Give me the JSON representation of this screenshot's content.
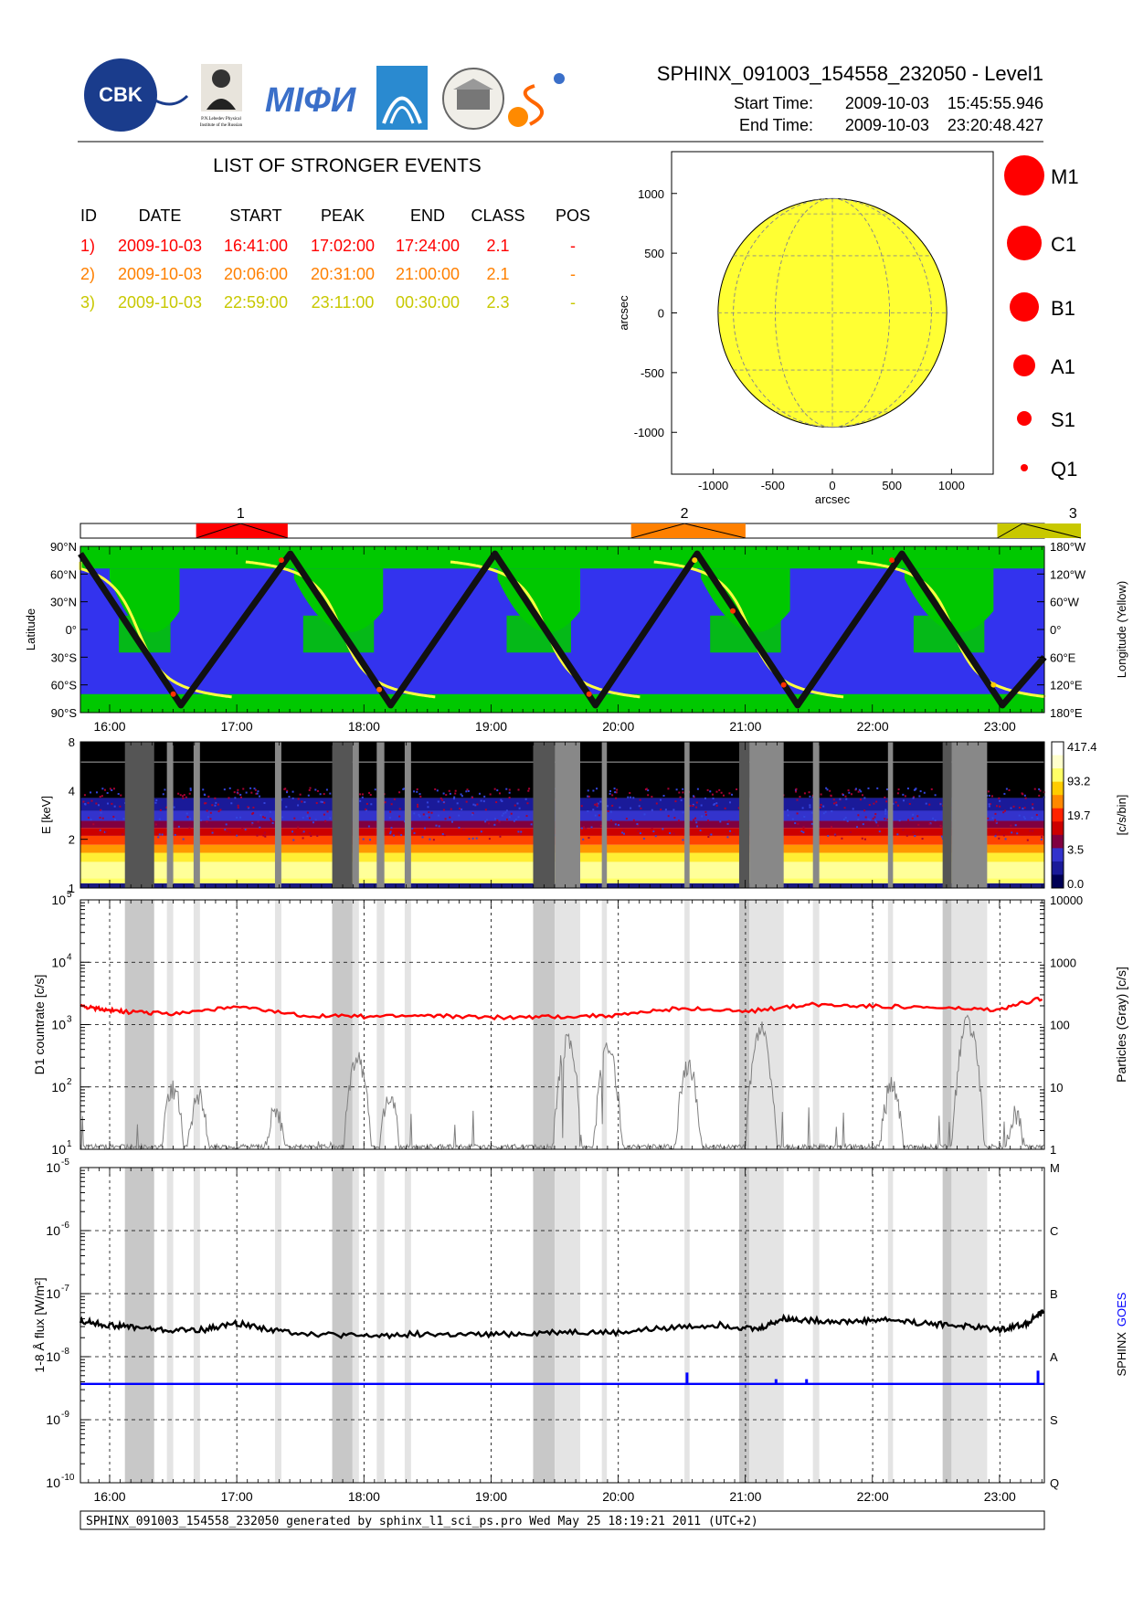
{
  "header": {
    "title": "SPHINX_091003_154558_232050 - Level1",
    "start_label": "Start Time:",
    "start_value": "2009-10-03    15:45:55.946",
    "end_label": "End Time:",
    "end_value": "2009-10-03    23:20:48.427",
    "logos": [
      "CBK PAN",
      "P.N.Lebedev Physical Institute of the Russian Academy of Science",
      "MIFI",
      "Lockheed",
      "Instytut",
      "Solar"
    ]
  },
  "events_table": {
    "heading": "LIST OF STRONGER EVENTS",
    "columns": [
      "ID",
      "DATE",
      "START",
      "PEAK",
      "END",
      "CLASS",
      "POS"
    ],
    "rows": [
      {
        "id": "1)",
        "date": "2009-10-03",
        "start": "16:41:00",
        "peak": "17:02:00",
        "end": "17:24:00",
        "class": "2.1",
        "pos": "-",
        "color": "#ff0000"
      },
      {
        "id": "2)",
        "date": "2009-10-03",
        "start": "20:06:00",
        "peak": "20:31:00",
        "end": "21:00:00",
        "class": "2.1",
        "pos": "-",
        "color": "#ff8000"
      },
      {
        "id": "3)",
        "date": "2009-10-03",
        "start": "22:59:00",
        "peak": "23:11:00",
        "end": "00:30:00",
        "class": "2.3",
        "pos": "-",
        "color": "#c8c800"
      }
    ]
  },
  "sun_legend": [
    "M1",
    "C1",
    "B1",
    "A1",
    "S1",
    "Q1"
  ],
  "event_markers": [
    "1",
    "2",
    "3"
  ],
  "footer": "SPHINX_091003_154558_232050 generated by sphinx_l1_sci_ps.pro Wed May 25 18:19:21 2011 (UTC+2)",
  "colors": {
    "sun": "#ffff33",
    "orbit_blue": "#3333ee",
    "orbit_green": "#00c800",
    "sphinx_flux": "#000000",
    "goes_flux": "#0000ff",
    "d1_countrate": "#ff0000",
    "particles": "#808080"
  },
  "chart_data": [
    {
      "type": "scatter",
      "name": "sun_disc",
      "xlabel": "arcsec",
      "ylabel": "arcsec",
      "xlim": [
        -1350,
        1350
      ],
      "ylim": [
        -1350,
        1350
      ],
      "xticks": [
        "-1000",
        "-500",
        "0",
        "500",
        "1000"
      ],
      "xtick_values": [
        -1000,
        -500,
        0,
        500,
        1000
      ],
      "yticks": [
        "1000",
        "500",
        "0",
        "-500",
        "-1000"
      ],
      "ytick_values": [
        1000,
        500,
        0,
        -500,
        -1000
      ],
      "sun_radius": 960
    },
    {
      "type": "line",
      "name": "orbit_position",
      "ylabel": "Latitude",
      "y2label": "Longitude (Yellow)",
      "yticks": [
        "90°N",
        "60°N",
        "30°N",
        "0°",
        "30°S",
        "60°S",
        "90°S"
      ],
      "ytick_values": [
        90,
        60,
        30,
        0,
        -30,
        -60,
        -90
      ],
      "y2ticks": [
        "180°W",
        "120°W",
        "60°W",
        "0°",
        "60°E",
        "120°E",
        "180°E"
      ],
      "x_time_hours": [
        15.77,
        23.35
      ],
      "latitude_track": {
        "x": [
          15.77,
          16.56,
          17.42,
          18.21,
          19.03,
          19.82,
          20.62,
          21.41,
          22.23,
          23.02,
          23.35
        ],
        "y": [
          82,
          -82,
          82,
          -82,
          82,
          -82,
          82,
          -82,
          82,
          -82,
          -30
        ]
      },
      "longitude_track_centers": [
        16.22,
        17.82,
        19.43,
        21.03,
        22.63
      ]
    },
    {
      "type": "heatmap",
      "name": "spectrum",
      "ylabel": "E [keV]",
      "yticks": [
        "8",
        "4",
        "2",
        "1"
      ],
      "ytick_values": [
        8,
        4,
        2,
        1
      ],
      "colorbar_label": "[c/s/bin]",
      "colorbar_ticks": [
        "417.4",
        "93.2",
        "19.7",
        "3.5",
        "0.0"
      ]
    },
    {
      "type": "line",
      "name": "d1_countrate",
      "ylabel": "D1 countrate [c/s]",
      "y2label": "Particles (Gray) [c/s]",
      "ylim": [
        10,
        100000
      ],
      "yscale": "log",
      "yticks": [
        "10^1",
        "10^2",
        "10^3",
        "10^4",
        "10^5"
      ],
      "y2ticks": [
        "1",
        "10",
        "100",
        "1000",
        "10000"
      ],
      "series": [
        {
          "name": "D1",
          "x": [
            15.77,
            15.95,
            16.15,
            16.5,
            17.0,
            17.5,
            18.0,
            18.5,
            19.0,
            19.5,
            20.0,
            20.5,
            21.0,
            21.5,
            22.0,
            22.5,
            23.0,
            23.35
          ],
          "y": [
            2000,
            1750,
            1600,
            1500,
            1900,
            1400,
            1350,
            1400,
            1300,
            1350,
            1400,
            1850,
            1600,
            2100,
            2000,
            1850,
            1700,
            2700
          ]
        },
        {
          "name": "Particles",
          "peaks": [
            {
              "x": 16.5,
              "y": 25
            },
            {
              "x": 16.7,
              "y": 20
            },
            {
              "x": 17.3,
              "y": 12
            },
            {
              "x": 17.95,
              "y": 80
            },
            {
              "x": 18.2,
              "y": 18
            },
            {
              "x": 19.6,
              "y": 140
            },
            {
              "x": 19.92,
              "y": 110
            },
            {
              "x": 20.55,
              "y": 60
            },
            {
              "x": 21.12,
              "y": 230
            },
            {
              "x": 22.15,
              "y": 30
            },
            {
              "x": 22.75,
              "y": 300
            },
            {
              "x": 23.12,
              "y": 10
            }
          ]
        }
      ]
    },
    {
      "type": "line",
      "name": "xray_flux",
      "ylabel": "1-8 Å flux [W/m²]",
      "y2label": [
        "SPHINX",
        "GOES"
      ],
      "ylim": [
        1e-10,
        1e-05
      ],
      "yscale": "log",
      "yticks": [
        "10^-10",
        "10^-9",
        "10^-8",
        "10^-7",
        "10^-6",
        "10^-5"
      ],
      "y2ticks": [
        "Q",
        "S",
        "A",
        "B",
        "C",
        "M"
      ],
      "xticks": [
        "16:00",
        "17:00",
        "18:00",
        "19:00",
        "20:00",
        "21:00",
        "22:00",
        "23:00"
      ],
      "xtick_values": [
        16,
        17,
        18,
        19,
        20,
        21,
        22,
        23
      ],
      "series": [
        {
          "name": "SPHINX",
          "x": [
            15.77,
            15.95,
            16.15,
            16.45,
            16.75,
            17.0,
            17.3,
            17.6,
            18.0,
            18.4,
            18.8,
            19.2,
            19.6,
            20.0,
            20.4,
            20.8,
            21.1,
            21.3,
            21.5,
            21.8,
            22.1,
            22.4,
            22.7,
            23.0,
            23.2,
            23.35
          ],
          "y": [
            3.8e-08,
            3.2e-08,
            3e-08,
            2.6e-08,
            2.7e-08,
            3.4e-08,
            2.6e-08,
            2.3e-08,
            2.1e-08,
            2.3e-08,
            2.2e-08,
            2.3e-08,
            2.5e-08,
            2.4e-08,
            2.9e-08,
            3.2e-08,
            2.7e-08,
            4e-08,
            3.8e-08,
            3.6e-08,
            3.9e-08,
            3.4e-08,
            3.1e-08,
            2.7e-08,
            3.3e-08,
            5.2e-08
          ]
        },
        {
          "name": "GOES",
          "baseline": 3.7e-09,
          "spikes": [
            {
              "x": 20.54,
              "y": 5.6e-09
            },
            {
              "x": 21.24,
              "y": 4.4e-09
            },
            {
              "x": 21.48,
              "y": 4.4e-09
            },
            {
              "x": 23.3,
              "y": 6e-09
            }
          ]
        }
      ]
    }
  ],
  "time_axis": {
    "start_hours": 15.77,
    "end_hours": 23.35,
    "events_bar": [
      {
        "label": "1",
        "start": 16.68,
        "peak": 17.03,
        "end": 17.4,
        "color": "#ff0000"
      },
      {
        "label": "2",
        "start": 20.1,
        "peak": 20.52,
        "end": 21.0,
        "color": "#ff8000"
      },
      {
        "label": "3",
        "start": 22.98,
        "peak": 23.18,
        "end": 23.35,
        "color": "#c8c800"
      }
    ],
    "dark_shades": [
      [
        16.12,
        16.35
      ],
      [
        17.75,
        17.91
      ],
      [
        19.33,
        19.5
      ],
      [
        20.95,
        21.03
      ],
      [
        22.55,
        22.62
      ]
    ],
    "light_shades": [
      [
        16.45,
        16.5
      ],
      [
        16.66,
        16.71
      ],
      [
        17.3,
        17.35
      ],
      [
        17.91,
        17.96
      ],
      [
        18.1,
        18.16
      ],
      [
        18.32,
        18.37
      ],
      [
        19.5,
        19.7
      ],
      [
        19.87,
        19.91
      ],
      [
        20.52,
        20.56
      ],
      [
        21.03,
        21.3
      ],
      [
        21.53,
        21.58
      ],
      [
        22.12,
        22.16
      ],
      [
        22.62,
        22.9
      ]
    ]
  }
}
